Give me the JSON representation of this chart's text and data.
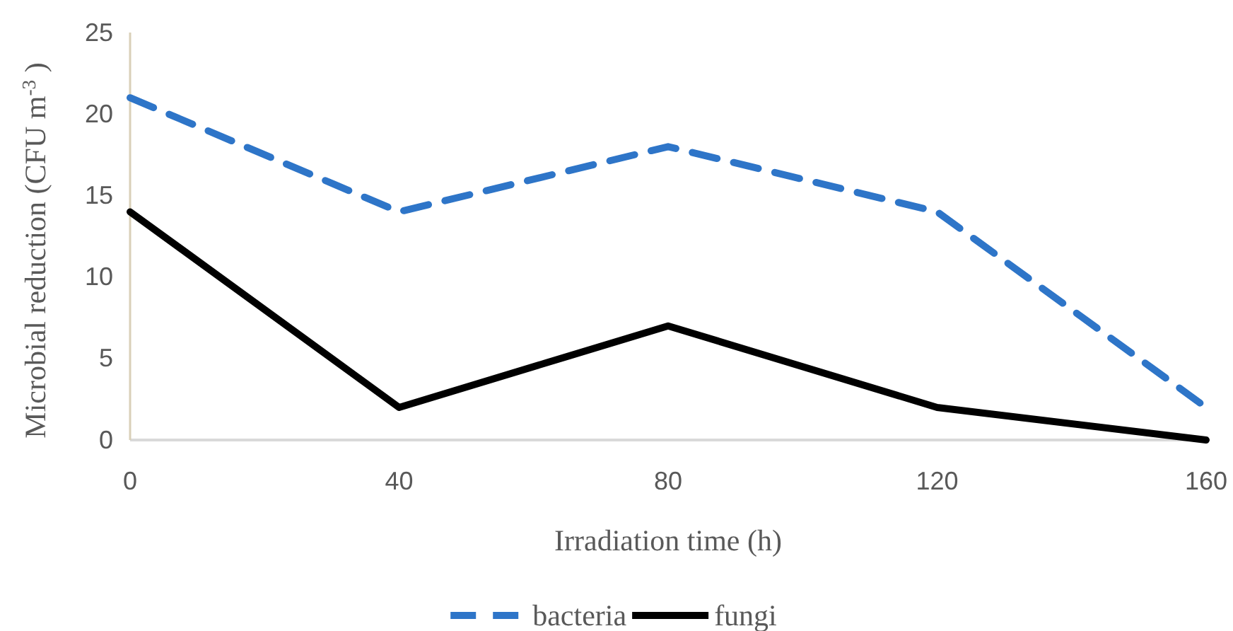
{
  "chart_data": {
    "type": "line",
    "xlabel": "Irradiation time (h)",
    "ylabel": "Microbial reduction (CFU m$^{-3}$ )",
    "x": [
      0,
      40,
      80,
      120,
      160
    ],
    "xlim": [
      0,
      160
    ],
    "xticks": [
      0,
      40,
      80,
      120,
      160
    ],
    "ylim": [
      0,
      25
    ],
    "yticks": [
      0,
      5,
      10,
      15,
      20,
      25
    ],
    "grid": false,
    "legend": "bottom",
    "series": [
      {
        "name": "bacteria",
        "color": "#2e75c8",
        "line_style": "dashed",
        "values": [
          21,
          14,
          18,
          14,
          2
        ]
      },
      {
        "name": "fungi",
        "color": "#000000",
        "line_style": "solid",
        "values": [
          14,
          2,
          7,
          2,
          0
        ]
      }
    ]
  }
}
